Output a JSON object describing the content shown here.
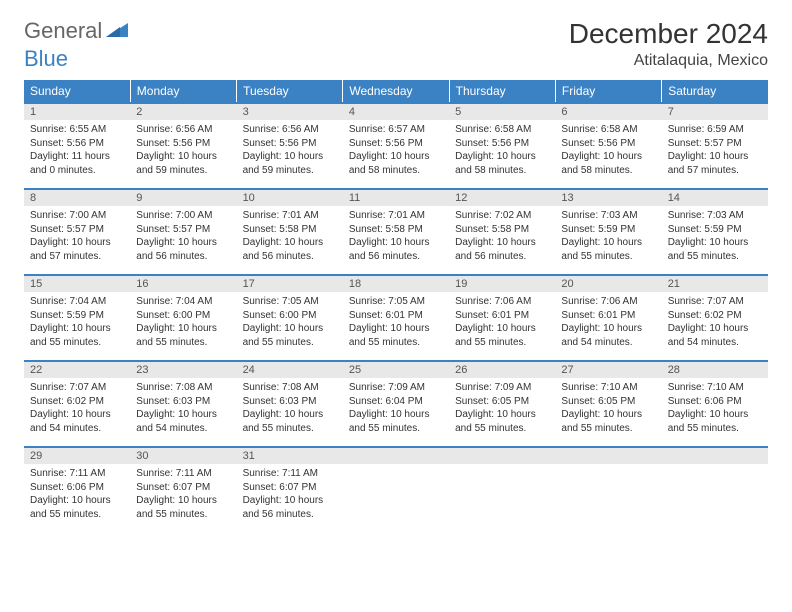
{
  "brand": {
    "part1": "General",
    "part2": "Blue"
  },
  "title": "December 2024",
  "location": "Atitalaquia, Mexico",
  "header_color": "#3b82c4",
  "day_num_bg": "#e8e8e8",
  "weekdays": [
    "Sunday",
    "Monday",
    "Tuesday",
    "Wednesday",
    "Thursday",
    "Friday",
    "Saturday"
  ],
  "weeks": [
    [
      {
        "n": "1",
        "sr": "6:55 AM",
        "ss": "5:56 PM",
        "dl": "11 hours and 0 minutes."
      },
      {
        "n": "2",
        "sr": "6:56 AM",
        "ss": "5:56 PM",
        "dl": "10 hours and 59 minutes."
      },
      {
        "n": "3",
        "sr": "6:56 AM",
        "ss": "5:56 PM",
        "dl": "10 hours and 59 minutes."
      },
      {
        "n": "4",
        "sr": "6:57 AM",
        "ss": "5:56 PM",
        "dl": "10 hours and 58 minutes."
      },
      {
        "n": "5",
        "sr": "6:58 AM",
        "ss": "5:56 PM",
        "dl": "10 hours and 58 minutes."
      },
      {
        "n": "6",
        "sr": "6:58 AM",
        "ss": "5:56 PM",
        "dl": "10 hours and 58 minutes."
      },
      {
        "n": "7",
        "sr": "6:59 AM",
        "ss": "5:57 PM",
        "dl": "10 hours and 57 minutes."
      }
    ],
    [
      {
        "n": "8",
        "sr": "7:00 AM",
        "ss": "5:57 PM",
        "dl": "10 hours and 57 minutes."
      },
      {
        "n": "9",
        "sr": "7:00 AM",
        "ss": "5:57 PM",
        "dl": "10 hours and 56 minutes."
      },
      {
        "n": "10",
        "sr": "7:01 AM",
        "ss": "5:58 PM",
        "dl": "10 hours and 56 minutes."
      },
      {
        "n": "11",
        "sr": "7:01 AM",
        "ss": "5:58 PM",
        "dl": "10 hours and 56 minutes."
      },
      {
        "n": "12",
        "sr": "7:02 AM",
        "ss": "5:58 PM",
        "dl": "10 hours and 56 minutes."
      },
      {
        "n": "13",
        "sr": "7:03 AM",
        "ss": "5:59 PM",
        "dl": "10 hours and 55 minutes."
      },
      {
        "n": "14",
        "sr": "7:03 AM",
        "ss": "5:59 PM",
        "dl": "10 hours and 55 minutes."
      }
    ],
    [
      {
        "n": "15",
        "sr": "7:04 AM",
        "ss": "5:59 PM",
        "dl": "10 hours and 55 minutes."
      },
      {
        "n": "16",
        "sr": "7:04 AM",
        "ss": "6:00 PM",
        "dl": "10 hours and 55 minutes."
      },
      {
        "n": "17",
        "sr": "7:05 AM",
        "ss": "6:00 PM",
        "dl": "10 hours and 55 minutes."
      },
      {
        "n": "18",
        "sr": "7:05 AM",
        "ss": "6:01 PM",
        "dl": "10 hours and 55 minutes."
      },
      {
        "n": "19",
        "sr": "7:06 AM",
        "ss": "6:01 PM",
        "dl": "10 hours and 55 minutes."
      },
      {
        "n": "20",
        "sr": "7:06 AM",
        "ss": "6:01 PM",
        "dl": "10 hours and 54 minutes."
      },
      {
        "n": "21",
        "sr": "7:07 AM",
        "ss": "6:02 PM",
        "dl": "10 hours and 54 minutes."
      }
    ],
    [
      {
        "n": "22",
        "sr": "7:07 AM",
        "ss": "6:02 PM",
        "dl": "10 hours and 54 minutes."
      },
      {
        "n": "23",
        "sr": "7:08 AM",
        "ss": "6:03 PM",
        "dl": "10 hours and 54 minutes."
      },
      {
        "n": "24",
        "sr": "7:08 AM",
        "ss": "6:03 PM",
        "dl": "10 hours and 55 minutes."
      },
      {
        "n": "25",
        "sr": "7:09 AM",
        "ss": "6:04 PM",
        "dl": "10 hours and 55 minutes."
      },
      {
        "n": "26",
        "sr": "7:09 AM",
        "ss": "6:05 PM",
        "dl": "10 hours and 55 minutes."
      },
      {
        "n": "27",
        "sr": "7:10 AM",
        "ss": "6:05 PM",
        "dl": "10 hours and 55 minutes."
      },
      {
        "n": "28",
        "sr": "7:10 AM",
        "ss": "6:06 PM",
        "dl": "10 hours and 55 minutes."
      }
    ],
    [
      {
        "n": "29",
        "sr": "7:11 AM",
        "ss": "6:06 PM",
        "dl": "10 hours and 55 minutes."
      },
      {
        "n": "30",
        "sr": "7:11 AM",
        "ss": "6:07 PM",
        "dl": "10 hours and 55 minutes."
      },
      {
        "n": "31",
        "sr": "7:11 AM",
        "ss": "6:07 PM",
        "dl": "10 hours and 56 minutes."
      },
      {
        "empty": true
      },
      {
        "empty": true
      },
      {
        "empty": true
      },
      {
        "empty": true
      }
    ]
  ],
  "labels": {
    "sunrise": "Sunrise: ",
    "sunset": "Sunset: ",
    "daylight": "Daylight: "
  }
}
